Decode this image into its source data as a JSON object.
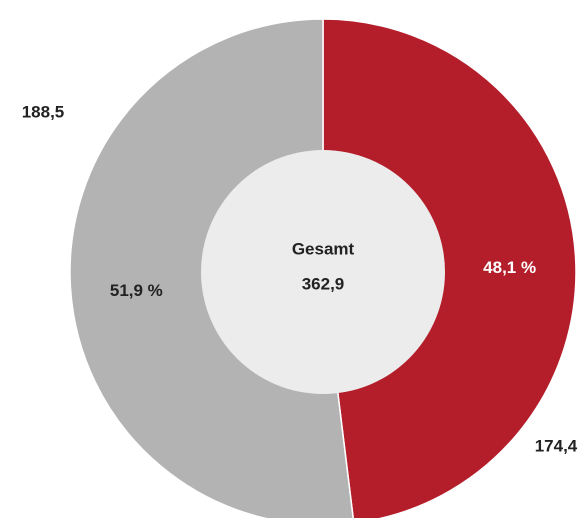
{
  "chart_data": {
    "type": "pie",
    "donut": true,
    "values": [
      174.4,
      188.5
    ],
    "value_labels": [
      "174,4",
      "188,5"
    ],
    "percentages": [
      48.1,
      51.9
    ],
    "percent_labels": [
      "48,1 %",
      "51,9 %"
    ],
    "colors": [
      "#b41e2b",
      "#b3b3b3"
    ],
    "center_label": "Gesamt",
    "total": 362.9,
    "total_label": "362,9"
  }
}
